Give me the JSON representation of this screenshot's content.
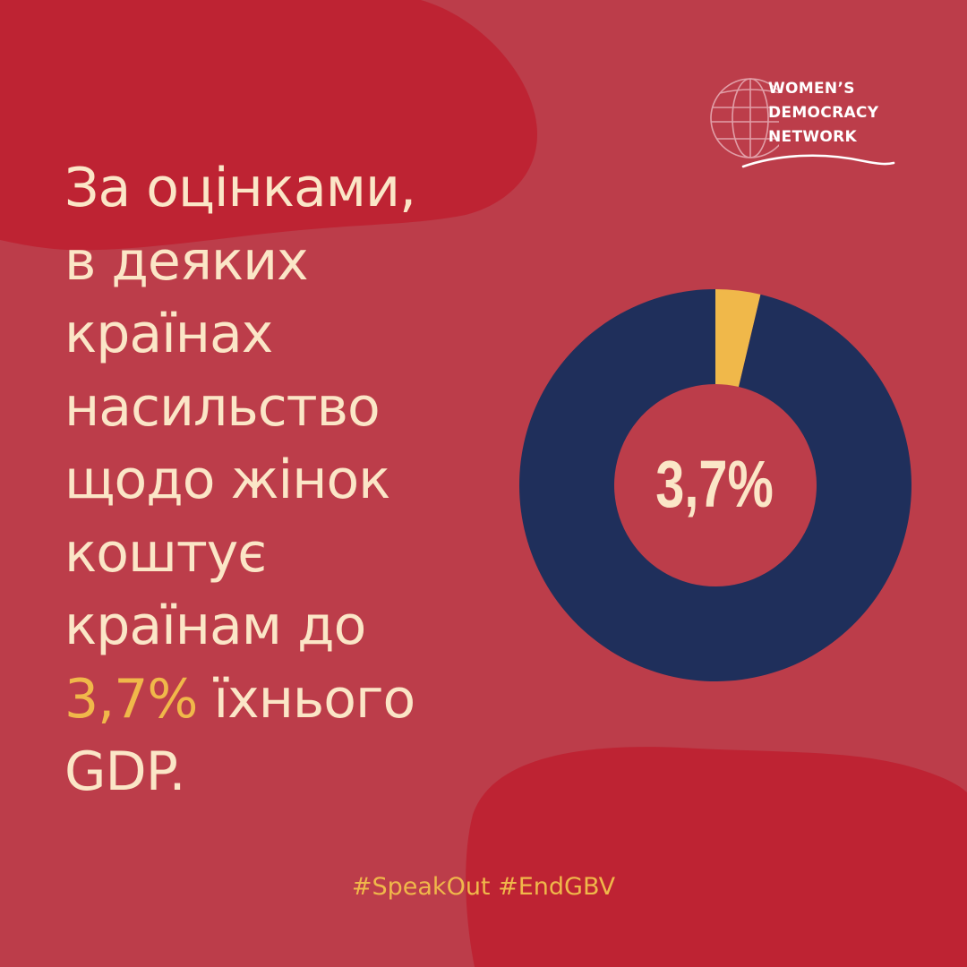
{
  "colors": {
    "background": "#bc3d4a",
    "blob": "#be2333",
    "text": "#fbe6c7",
    "accent": "#f0b84a",
    "navy": "#1f2f5b"
  },
  "logo": {
    "icon": "globe-icon",
    "line1": "WOMEN’S",
    "line2": "DEMOCRACY",
    "line3": "NETWORK"
  },
  "headline": {
    "line1": "За оцінками,",
    "line2": "в деяких",
    "line3": "країнах",
    "line4": "насильство",
    "line5": "щодо жінок",
    "line6": "коштує",
    "line7": "країнам до",
    "line8_highlight": "3,7%",
    "line8_rest": " їхнього",
    "line9": "GDP."
  },
  "chart_data": {
    "type": "pie",
    "variant": "donut",
    "center_label": "3,7%",
    "slices": [
      {
        "value": 3.7,
        "color": "#f0b84a"
      },
      {
        "value": 96.3,
        "color": "#1f2f5b"
      }
    ]
  },
  "hashtags": "#SpeakOut #EndGBV"
}
